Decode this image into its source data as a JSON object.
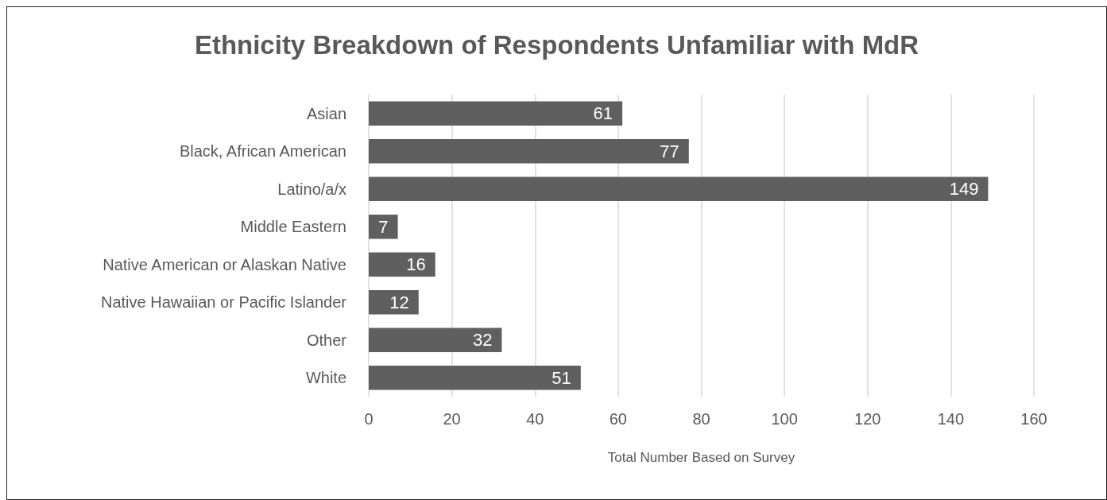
{
  "chart_data": {
    "type": "bar",
    "orientation": "horizontal",
    "title": "Ethnicity Breakdown of Respondents Unfamiliar with MdR",
    "xlabel": "Total Number Based on Survey",
    "categories": [
      "Asian",
      "Black, African American",
      "Latino/a/x",
      "Middle Eastern",
      "Native American or Alaskan Native",
      "Native Hawaiian or Pacific Islander",
      "Other",
      "White"
    ],
    "values": [
      61,
      77,
      149,
      7,
      16,
      12,
      32,
      51
    ],
    "color": "#5f5f5f",
    "xlim": [
      0,
      160
    ],
    "xticks": [
      0,
      20,
      40,
      60,
      80,
      100,
      120,
      140,
      160
    ],
    "grid": "x",
    "data_labels": true
  }
}
